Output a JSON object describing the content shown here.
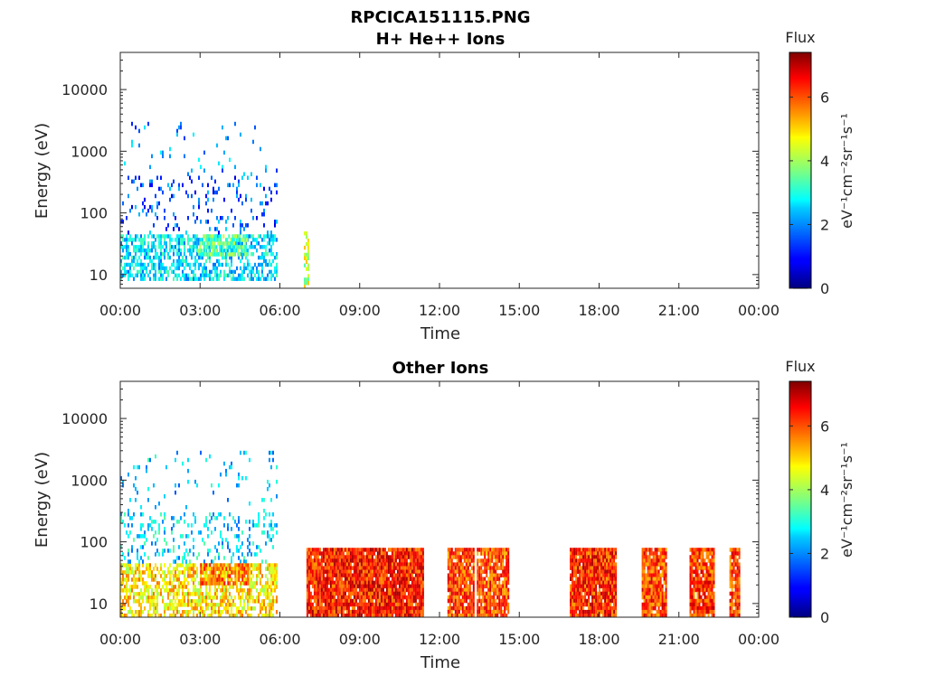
{
  "figure": {
    "file_title": "RPCICA151115.PNG"
  },
  "chart_data": [
    {
      "type": "heatmap",
      "title": "H+ He++ Ions",
      "xlabel": "Time",
      "ylabel": "Energy (eV)",
      "x_ticks": [
        "00:00",
        "03:00",
        "06:00",
        "09:00",
        "12:00",
        "15:00",
        "18:00",
        "21:00",
        "00:00"
      ],
      "x_range_hours": [
        0,
        24
      ],
      "y_scale": "log",
      "y_range_ev": [
        6,
        40000
      ],
      "y_ticks": [
        {
          "value": 10,
          "label": "10"
        },
        {
          "value": 100,
          "label": "100"
        },
        {
          "value": 1000,
          "label": "1000"
        },
        {
          "value": 10000,
          "label": "10000"
        }
      ],
      "colorbar": {
        "title": "Flux",
        "label": "eV⁻¹cm⁻²sr⁻¹s⁻¹",
        "range": [
          0,
          7.4
        ],
        "ticks": [
          0,
          2,
          4,
          6
        ],
        "colormap": "jet"
      },
      "blocks": [
        {
          "t_start": 0.0,
          "t_end": 5.9,
          "e_low": 8,
          "e_high": 45,
          "flux": 2.6,
          "density": 0.55
        },
        {
          "t_start": 0.0,
          "t_end": 5.9,
          "e_low": 45,
          "e_high": 400,
          "flux": 1.6,
          "density": 0.12
        },
        {
          "t_start": 0.0,
          "t_end": 5.9,
          "e_low": 400,
          "e_high": 3000,
          "flux": 2.0,
          "density": 0.04
        },
        {
          "t_start": 2.9,
          "t_end": 4.8,
          "e_low": 20,
          "e_high": 45,
          "flux": 3.4,
          "density": 0.6
        },
        {
          "t_start": 6.9,
          "t_end": 7.1,
          "e_low": 6,
          "e_high": 50,
          "flux": 4.2,
          "density": 0.5
        }
      ]
    },
    {
      "type": "heatmap",
      "title": "Other Ions",
      "xlabel": "Time",
      "ylabel": "Energy (eV)",
      "x_ticks": [
        "00:00",
        "03:00",
        "06:00",
        "09:00",
        "12:00",
        "15:00",
        "18:00",
        "21:00",
        "00:00"
      ],
      "x_range_hours": [
        0,
        24
      ],
      "y_scale": "log",
      "y_range_ev": [
        6,
        40000
      ],
      "y_ticks": [
        {
          "value": 10,
          "label": "10"
        },
        {
          "value": 100,
          "label": "100"
        },
        {
          "value": 1000,
          "label": "1000"
        },
        {
          "value": 10000,
          "label": "10000"
        }
      ],
      "colorbar": {
        "title": "Flux",
        "label": "eV⁻¹cm⁻²sr⁻¹s⁻¹",
        "range": [
          0,
          7.4
        ],
        "ticks": [
          0,
          2,
          4,
          6
        ],
        "colormap": "jet"
      },
      "blocks": [
        {
          "t_start": 0.0,
          "t_end": 5.9,
          "e_low": 6,
          "e_high": 45,
          "flux": 4.8,
          "density": 0.6
        },
        {
          "t_start": 0.0,
          "t_end": 5.9,
          "e_low": 45,
          "e_high": 300,
          "flux": 2.6,
          "density": 0.2
        },
        {
          "t_start": 0.0,
          "t_end": 5.9,
          "e_low": 300,
          "e_high": 3000,
          "flux": 2.4,
          "density": 0.05
        },
        {
          "t_start": 3.0,
          "t_end": 4.8,
          "e_low": 20,
          "e_high": 45,
          "flux": 5.6,
          "density": 0.7
        },
        {
          "t_start": 7.0,
          "t_end": 11.4,
          "e_low": 6,
          "e_high": 80,
          "flux": 6.3,
          "density": 0.95
        },
        {
          "t_start": 12.3,
          "t_end": 13.3,
          "e_low": 6,
          "e_high": 80,
          "flux": 6.0,
          "density": 0.9
        },
        {
          "t_start": 13.4,
          "t_end": 14.6,
          "e_low": 6,
          "e_high": 80,
          "flux": 5.9,
          "density": 0.9
        },
        {
          "t_start": 16.9,
          "t_end": 18.6,
          "e_low": 6,
          "e_high": 80,
          "flux": 6.2,
          "density": 0.95
        },
        {
          "t_start": 19.6,
          "t_end": 20.5,
          "e_low": 6,
          "e_high": 80,
          "flux": 6.0,
          "density": 0.9
        },
        {
          "t_start": 21.4,
          "t_end": 22.3,
          "e_low": 6,
          "e_high": 80,
          "flux": 6.1,
          "density": 0.9
        },
        {
          "t_start": 22.9,
          "t_end": 23.3,
          "e_low": 6,
          "e_high": 80,
          "flux": 6.0,
          "density": 0.9
        }
      ]
    }
  ]
}
